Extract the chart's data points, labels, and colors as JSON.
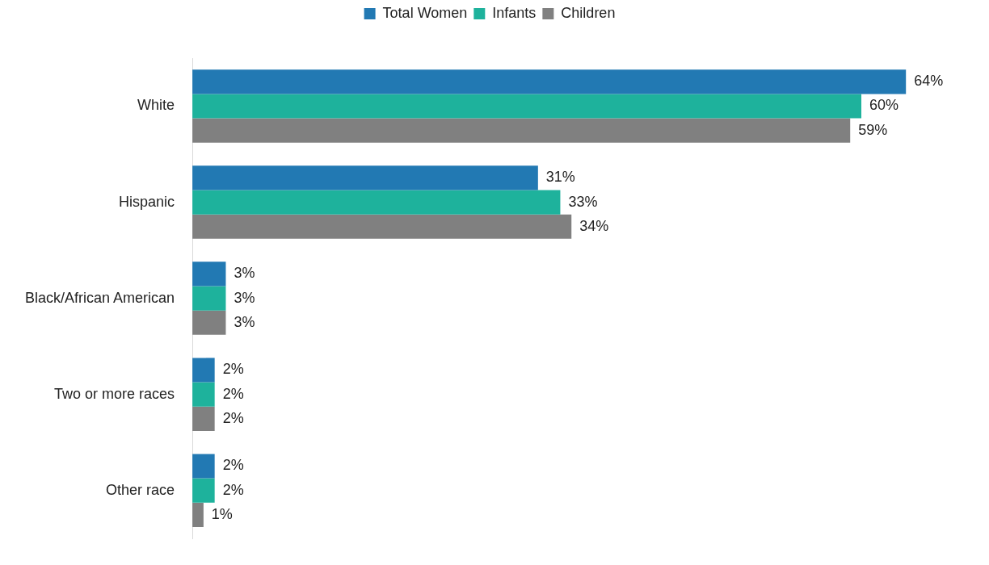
{
  "chart_data": {
    "type": "bar",
    "orientation": "horizontal",
    "categories": [
      "White",
      "Hispanic",
      "Black/African American",
      "Two or more races",
      "Other race"
    ],
    "series": [
      {
        "name": "Total Women",
        "color": "#2279b3",
        "values": [
          64,
          31,
          3,
          2,
          2
        ],
        "value_labels": [
          "64%",
          "31%",
          "3%",
          "2%",
          "2%"
        ]
      },
      {
        "name": "Infants",
        "color": "#1eb29c",
        "values": [
          60,
          33,
          3,
          2,
          2
        ],
        "value_labels": [
          "60%",
          "33%",
          "3%",
          "2%",
          "2%"
        ]
      },
      {
        "name": "Children",
        "color": "#808080",
        "values": [
          59,
          34,
          3,
          2,
          1
        ],
        "value_labels": [
          "59%",
          "34%",
          "3%",
          "2%",
          "1%"
        ]
      }
    ],
    "legend": "top",
    "tick_labels": "y"
  }
}
